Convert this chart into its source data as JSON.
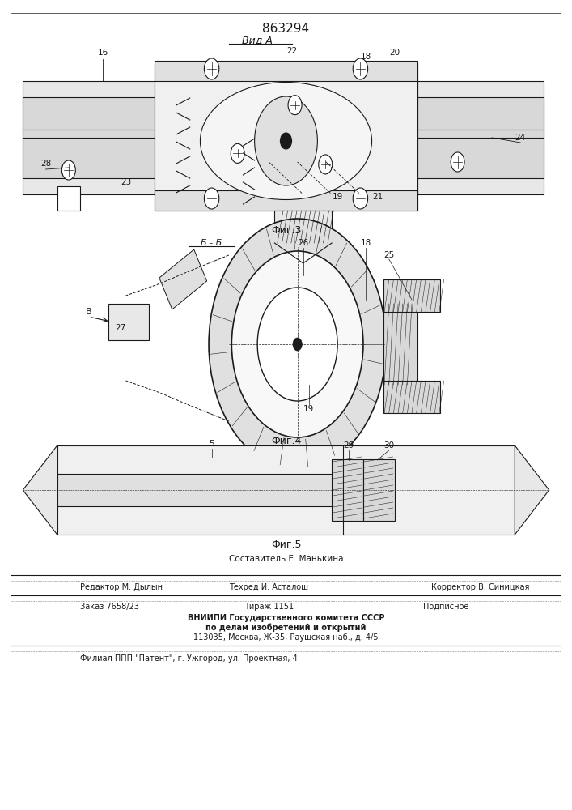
{
  "patent_number": "863294",
  "fig2_label": "Вид А",
  "fig3_label": "Фиг.3",
  "fig3_section": "Б - Б",
  "fig4_label": "Фиг.4",
  "fig5_label": "Фиг.5",
  "bg_color": "#ffffff",
  "line_color": "#1a1a1a",
  "footer_line1_left": "Редактор М. Дылын",
  "footer_line1_mid": "Техред И. Асталош",
  "footer_line1_right": "Корректор В. Синицкая",
  "footer_line2_left": "Заказ 7658/23",
  "footer_line2_mid": "Тираж 1151",
  "footer_line2_right": "Подписное",
  "footer_line3": "ВНИИПИ Государственного комитета СССР",
  "footer_line4": "по делам изобретений и открытий",
  "footer_line5": "113035, Москва, Ж-35, Раушская наб., д. 4/5",
  "footer_line6": "Филиал ППП \"Патент\", г. Ужгород, ул. Проектная, 4",
  "composer": "Составитель Е. Манькина"
}
